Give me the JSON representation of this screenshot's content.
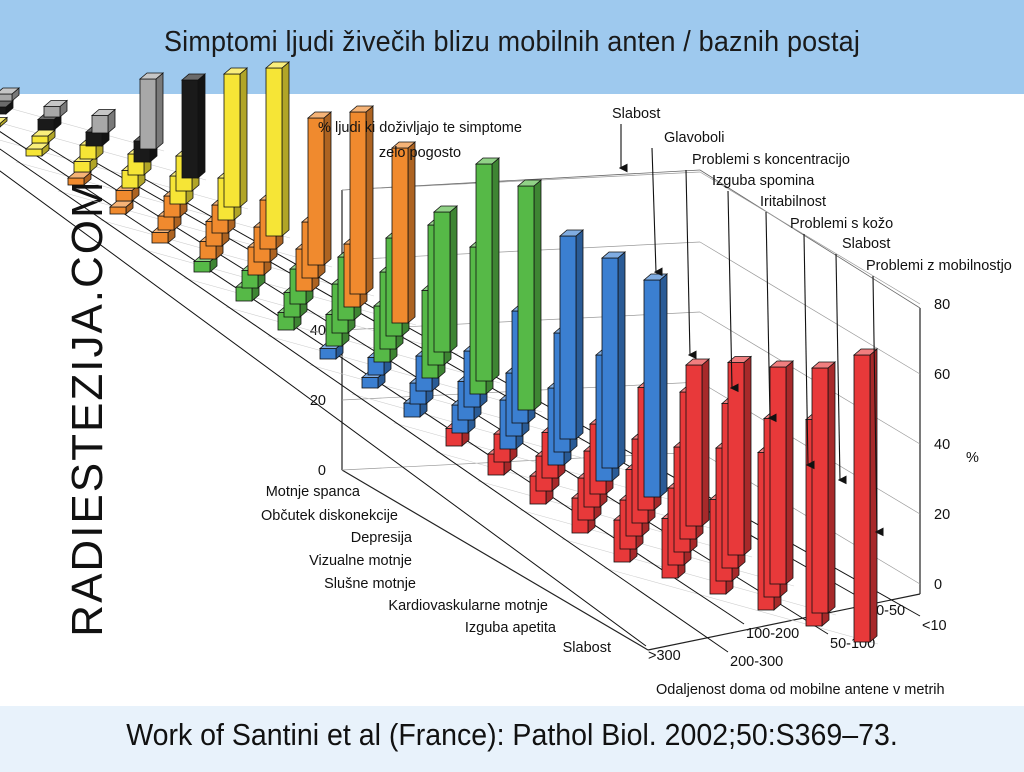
{
  "header": {
    "title": "Simptomi ljudi živečih blizu mobilnih anten / baznih postaj"
  },
  "watermark": {
    "text": "RADIESTEZIJA.COM"
  },
  "footer": {
    "citation": "Work of Santini et al (France): Pathol Biol. 2002;50:S369–73."
  },
  "chart_data": {
    "type": "bar",
    "title": "",
    "ylabel_left": [
      "% ljudi ki doživljajo te simptome",
      "zelo pogosto"
    ],
    "ylabel_right": "%",
    "xlabel": "Odaljenost doma od mobilne antene v metrih",
    "ylim": [
      0,
      80
    ],
    "yticks": [
      0,
      20,
      40,
      60,
      80
    ],
    "distances": [
      "<10",
      "10-50",
      "50-100",
      "100-200",
      "200-300",
      ">300"
    ],
    "front_symptoms": [
      "Motnje spanca",
      "Občutek diskonekcije",
      "Depresija",
      "Vizualne motnje",
      "Slušne motnje",
      "Kardiovaskularne motnje",
      "Izguba apetita",
      "Slabost"
    ],
    "back_symptoms": [
      "Slabost",
      "Glavoboli",
      "Problemi s koncentracijo",
      "Izguba spomina",
      "Iritabilnost",
      "Problemi s kožo",
      "Slabost",
      "Problemi z mobilnostjo"
    ],
    "series": [
      {
        "name": "Slabost",
        "color": "#e8393a",
        "values": [
          82,
          59,
          45,
          27,
          17,
          12
        ]
      },
      {
        "name": "Glavoboli",
        "color": "#e8393a",
        "values": [
          70,
          51,
          38,
          22,
          14,
          10
        ]
      },
      {
        "name": "Problemi s koncentracijo",
        "color": "#e8393a",
        "values": [
          62,
          47,
          30,
          19,
          12,
          8
        ]
      },
      {
        "name": "Izguba spomina",
        "color": "#e8393a",
        "values": [
          55,
          42,
          24,
          16,
          10,
          6
        ]
      },
      {
        "name": "Iritabilnost",
        "color": "#e8393a",
        "values": [
          46,
          35,
          20,
          13,
          8,
          5
        ]
      },
      {
        "name": "Problemi s kožo",
        "color": "#3b7fd1",
        "values": [
          62,
          36,
          22,
          14,
          8,
          4
        ]
      },
      {
        "name": "Slabost",
        "color": "#3b7fd1",
        "values": [
          60,
          34,
          18,
          11,
          6,
          3
        ]
      },
      {
        "name": "Problemi z mobilnostjo",
        "color": "#3b7fd1",
        "values": [
          58,
          32,
          16,
          10,
          5,
          3
        ]
      },
      {
        "name": "Motnje spanca",
        "color": "#56b947",
        "values": [
          64,
          42,
          25,
          16,
          9,
          5
        ]
      },
      {
        "name": "Občutek diskonekcije",
        "color": "#56b947",
        "values": [
          62,
          40,
          22,
          14,
          7,
          4
        ]
      },
      {
        "name": "Depresija",
        "color": "#56b947",
        "values": [
          40,
          28,
          18,
          10,
          5,
          3
        ]
      },
      {
        "name": "Vizualne motnje",
        "color": "#f08a2e",
        "values": [
          50,
          18,
          12,
          8,
          5,
          3
        ]
      },
      {
        "name": "Slušne motnje",
        "color": "#f08a2e",
        "values": [
          52,
          16,
          10,
          7,
          4,
          2
        ]
      },
      {
        "name": "Kardiovaskularne motnje",
        "color": "#f08a2e",
        "values": [
          42,
          14,
          8,
          6,
          3,
          2
        ]
      },
      {
        "name": "Izguba apetita",
        "color": "#f6e536",
        "values": [
          48,
          12,
          8,
          5,
          3,
          2
        ]
      },
      {
        "name": "Slabost",
        "color": "#f6e536",
        "values": [
          38,
          10,
          6,
          4,
          2,
          1
        ]
      },
      {
        "name": "Motnje spanca",
        "color": "#1a1a1a",
        "values": [
          28,
          6,
          4,
          3,
          2,
          1
        ]
      },
      {
        "name": "Občutek diskonekcije",
        "color": "#a8a8a8",
        "values": [
          20,
          5,
          3,
          2,
          1,
          1
        ]
      }
    ]
  }
}
